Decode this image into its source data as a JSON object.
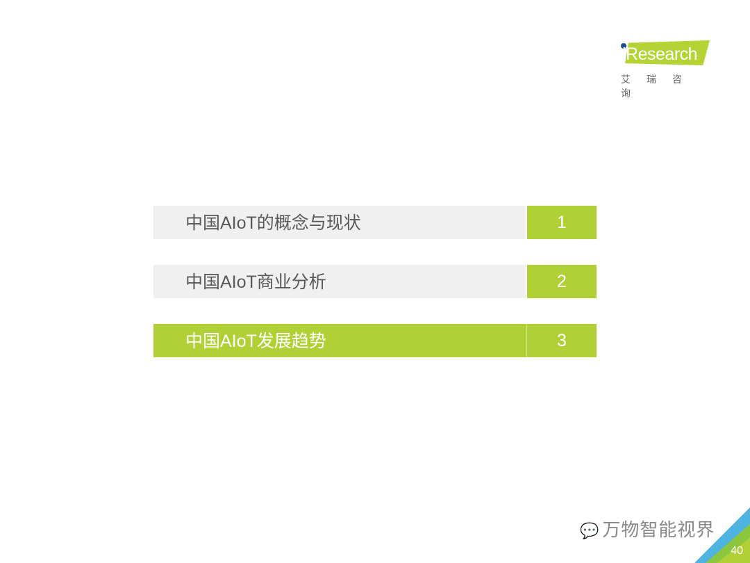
{
  "logo": {
    "brand": "iResearch",
    "brand_cn": "艾瑞咨询",
    "colors": {
      "green": "#b5d334",
      "dot": "#1d4f91"
    }
  },
  "agenda": {
    "items": [
      {
        "label": "中国AIoT的概念与现状",
        "number": "1",
        "active": false
      },
      {
        "label": "中国AIoT商业分析",
        "number": "2",
        "active": false
      },
      {
        "label": "中国AIoT发展趋势",
        "number": "3",
        "active": true
      }
    ],
    "colors": {
      "accent": "#b0d035",
      "inactive_bg": "#f0f0f0",
      "inactive_text": "#595959"
    }
  },
  "watermark": {
    "icon": "wechat-icon",
    "text": "万物智能视界"
  },
  "footer": {
    "page_number": "40"
  }
}
